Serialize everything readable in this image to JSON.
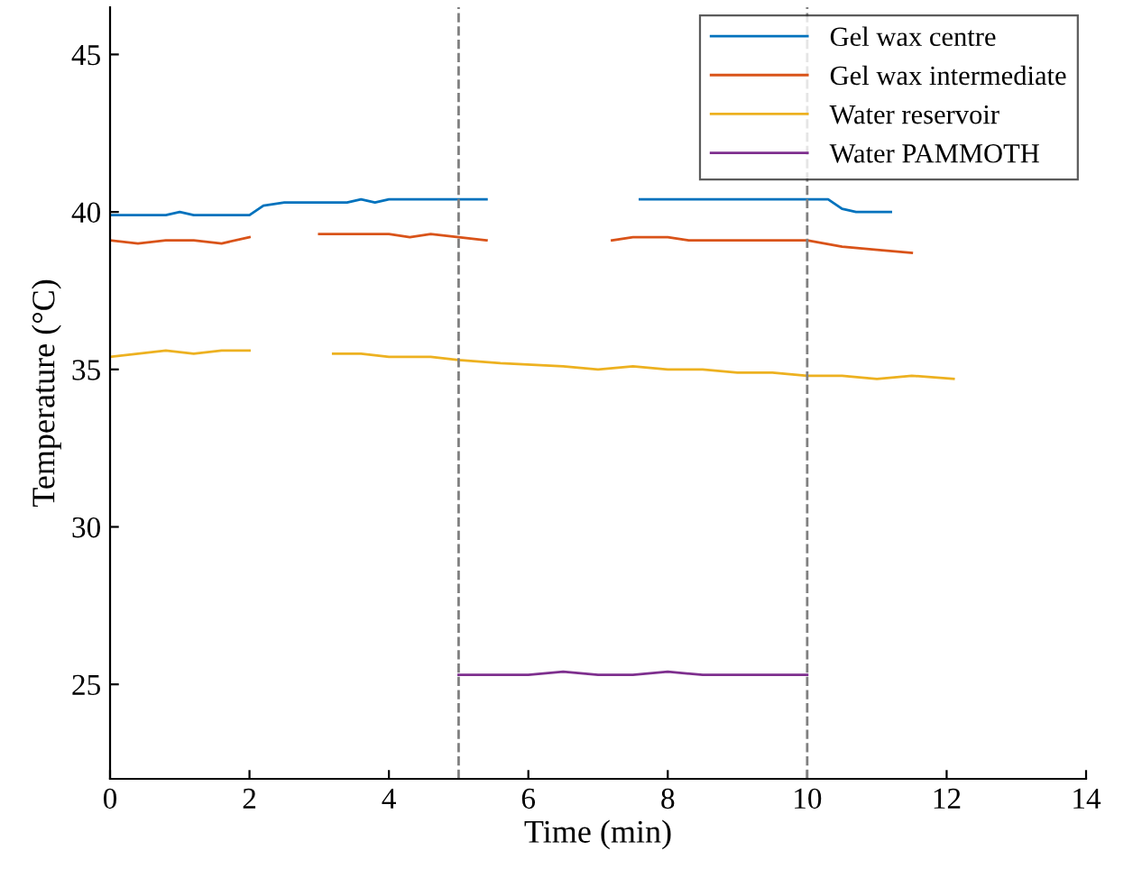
{
  "chart_data": {
    "type": "line",
    "xlabel": "Time (min)",
    "ylabel": "Temperature (°C)",
    "xlim": [
      0,
      14
    ],
    "ylim": [
      22,
      46.5
    ],
    "xticks": [
      0,
      2,
      4,
      6,
      8,
      10,
      12,
      14
    ],
    "yticks": [
      25,
      30,
      35,
      40,
      45
    ],
    "legend": "top right",
    "grid": false,
    "series": [
      {
        "name": "Gel wax centre",
        "color": "#0072bd",
        "x": [
          0,
          0.8,
          1.0,
          1.2,
          2.0,
          2.2,
          2.5,
          3.4,
          3.6,
          3.8,
          4.0,
          5.4,
          6.5,
          7.6,
          8.5,
          10.3,
          10.5,
          10.7,
          11.2
        ],
        "values": [
          39.9,
          39.9,
          40.0,
          39.9,
          39.9,
          40.2,
          40.3,
          40.3,
          40.4,
          40.3,
          40.4,
          40.4,
          null,
          40.4,
          40.4,
          40.4,
          40.1,
          40.0,
          40.0
        ]
      },
      {
        "name": "Gel wax intermediate",
        "color": "#d95319",
        "x": [
          0,
          0.4,
          0.8,
          1.2,
          1.6,
          2.0,
          2.5,
          3.0,
          4.0,
          4.3,
          4.6,
          5.0,
          5.4,
          6.3,
          7.2,
          7.5,
          8.0,
          8.3,
          9.0,
          9.5,
          10.0,
          10.5,
          11.0,
          11.5
        ],
        "values": [
          39.1,
          39.0,
          39.1,
          39.1,
          39.0,
          39.2,
          null,
          39.3,
          39.3,
          39.2,
          39.3,
          39.2,
          39.1,
          null,
          39.1,
          39.2,
          39.2,
          39.1,
          39.1,
          39.1,
          39.1,
          38.9,
          38.8,
          38.7
        ]
      },
      {
        "name": "Water reservoir",
        "color": "#edb120",
        "x": [
          0,
          0.4,
          0.8,
          1.2,
          1.6,
          2.0,
          2.6,
          3.2,
          3.6,
          4.0,
          4.6,
          5.0,
          5.6,
          6.5,
          7.0,
          7.5,
          8.0,
          8.5,
          9.0,
          9.5,
          10.0,
          10.5,
          11.0,
          11.5,
          12.1
        ],
        "values": [
          35.4,
          35.5,
          35.6,
          35.5,
          35.6,
          35.6,
          null,
          35.5,
          35.5,
          35.4,
          35.4,
          35.3,
          35.2,
          35.1,
          35.0,
          35.1,
          35.0,
          35.0,
          34.9,
          34.9,
          34.8,
          34.8,
          34.7,
          34.8,
          34.7
        ]
      },
      {
        "name": "Water PAMMOTH",
        "color": "#7e2f8e",
        "x": [
          5.0,
          5.5,
          6.0,
          6.5,
          7.0,
          7.5,
          8.0,
          8.5,
          9.0,
          9.5,
          10.0
        ],
        "values": [
          25.3,
          25.3,
          25.3,
          25.4,
          25.3,
          25.3,
          25.4,
          25.3,
          25.3,
          25.3,
          25.3
        ]
      }
    ],
    "ref_lines": [
      {
        "axis": "x",
        "value": 5,
        "color": "#808080",
        "line_style": "dashed"
      },
      {
        "axis": "x",
        "value": 10,
        "color": "#808080",
        "line_style": "dashed"
      }
    ]
  }
}
